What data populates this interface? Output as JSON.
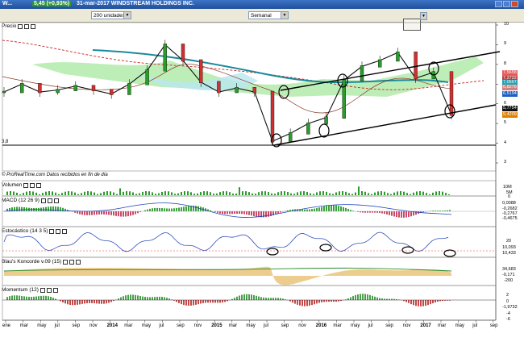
{
  "window": {
    "title_prefix": "W...",
    "price_tag": "5,45 (+0,93%)",
    "title": "31-mar-2017 WINDSTREAM HOLDINGS INC."
  },
  "toolbar": {
    "units": "200 unidades",
    "period": "Semanal"
  },
  "price_panel": {
    "title": "Precio",
    "left_level": "3,8",
    "footer": "© ProRealTime.com  Datos recibidos en fin de día",
    "ticks": [
      "10",
      "9",
      "8",
      "7",
      "6",
      "5",
      "4",
      "3"
    ],
    "tags": [
      "7,5658",
      "7,2722",
      "7,0567",
      "6,8276",
      "6,5194",
      "5,7754",
      "5,4209"
    ],
    "tag_colors": [
      "#e85a5a",
      "#b04040",
      "#20a0b0",
      "#d08080",
      "#2060c0",
      "#111111",
      "#e08000"
    ]
  },
  "volume_panel": {
    "title": "Volumen",
    "ticks": [
      "10M",
      "5M",
      "0"
    ]
  },
  "macd_panel": {
    "title": "MACD (12 26 9)",
    "values": [
      "0,0088",
      "-0,2682",
      "-0,2767",
      "-0,4675"
    ]
  },
  "stoch_panel": {
    "title": "Estocástico (14 3 5)",
    "values": [
      "20",
      "10,093",
      "10,433"
    ]
  },
  "blau_panel": {
    "title": "Blau's Koncorde v.09 (15)",
    "values": [
      "34,683",
      "-0,171",
      "-200"
    ]
  },
  "mom_panel": {
    "title": "Momentum (12)",
    "values": [
      "2",
      "0",
      "-1,9732",
      "-4",
      "-6"
    ]
  },
  "xaxis": [
    "ene",
    "mar",
    "may",
    "jul",
    "sep",
    "nov",
    "2014",
    "mar",
    "may",
    "jul",
    "sep",
    "nov",
    "2015",
    "mar",
    "may",
    "jul",
    "sep",
    "nov",
    "2016",
    "mar",
    "may",
    "jul",
    "sep",
    "nov",
    "2017",
    "mar",
    "may",
    "jul",
    "sep"
  ],
  "chart_data": {
    "type": "line",
    "title": "WINDSTREAM HOLDINGS INC.",
    "period": "Semanal",
    "x": [
      "2013-01",
      "2013-03",
      "2013-05",
      "2013-07",
      "2013-09",
      "2013-11",
      "2014-01",
      "2014-03",
      "2014-05",
      "2014-07",
      "2014-09",
      "2014-11",
      "2015-01",
      "2015-03",
      "2015-05",
      "2015-07",
      "2015-09",
      "2015-11",
      "2016-01",
      "2016-03",
      "2016-05",
      "2016-07",
      "2016-09",
      "2016-11",
      "2017-01",
      "2017-03"
    ],
    "series": [
      {
        "name": "Precio",
        "values": [
          6.6,
          7.0,
          6.6,
          6.7,
          6.9,
          6.7,
          6.5,
          7.0,
          7.7,
          9.0,
          8.2,
          7.1,
          6.6,
          6.8,
          6.6,
          4.1,
          4.5,
          5.0,
          5.3,
          7.2,
          7.9,
          8.2,
          8.6,
          7.3,
          7.6,
          5.45
        ]
      }
    ],
    "ylim": [
      3,
      10
    ],
    "yticks": [
      3,
      4,
      5,
      6,
      7,
      8,
      9,
      10
    ],
    "last_price": 5.45,
    "change_pct": "+0,93%"
  }
}
